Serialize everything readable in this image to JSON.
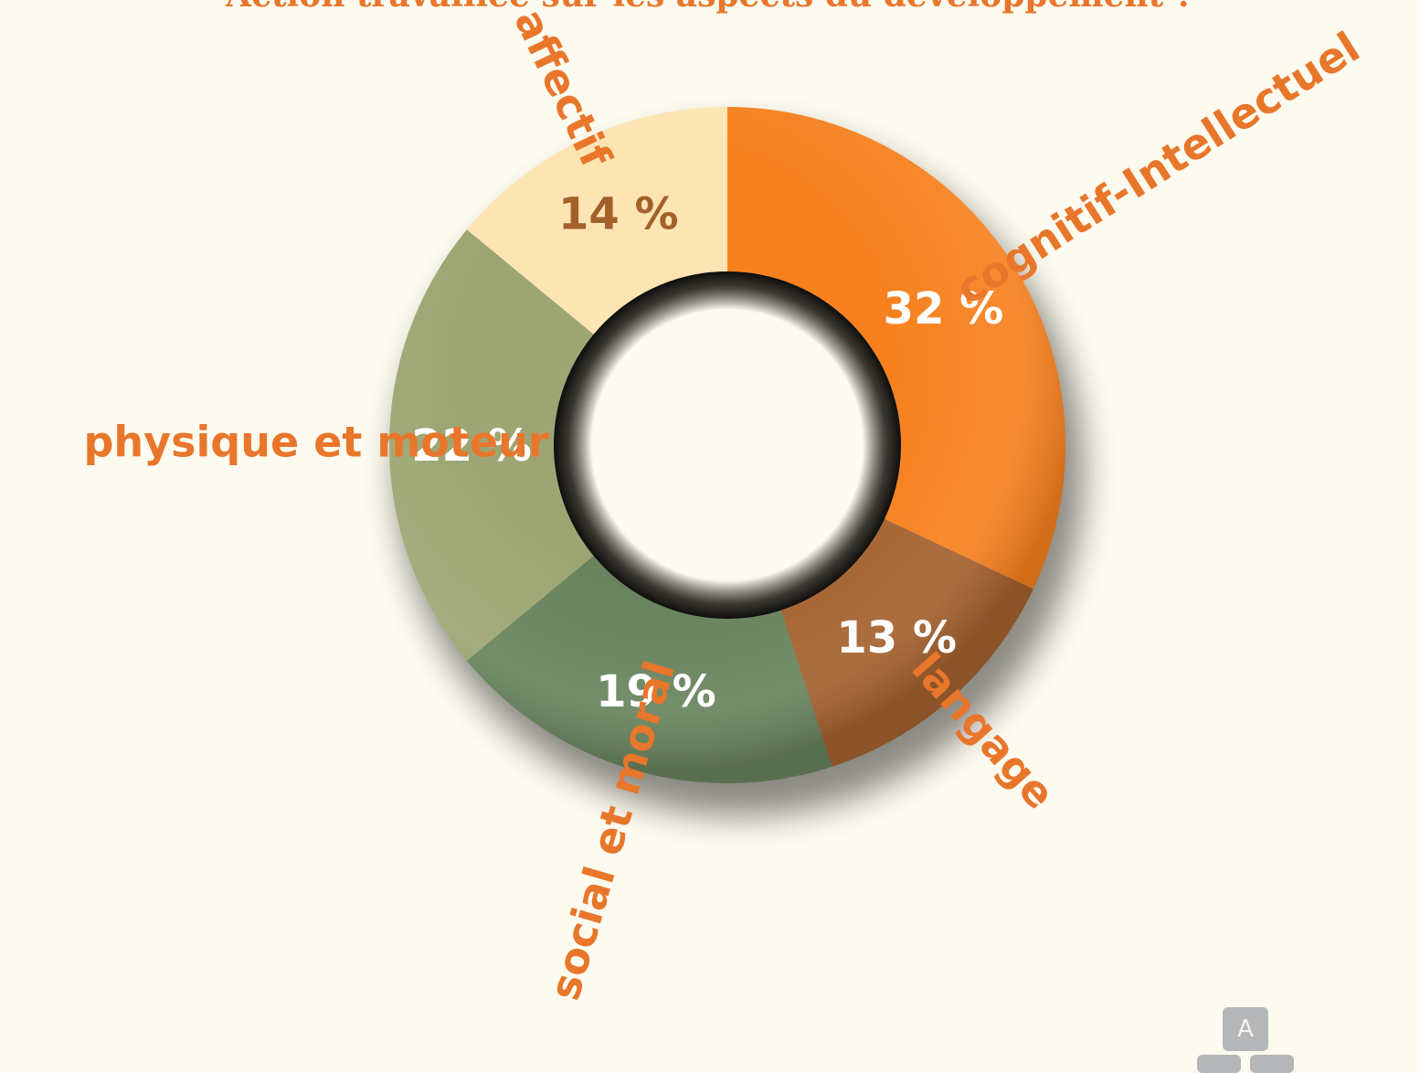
{
  "title": "Action travaillée sur les aspects du développement ?",
  "chart_data": {
    "type": "pie",
    "style": "donut",
    "slices": [
      {
        "category": "cognitif-Intellectuel",
        "value": 32,
        "label": "32 %",
        "color": "#f7811f",
        "label_color": "#ffffff",
        "category_color": "#e8762b"
      },
      {
        "category": "langage",
        "value": 13,
        "label": "13 %",
        "color": "#a4622f",
        "label_color": "#ffffff",
        "category_color": "#e8762b"
      },
      {
        "category": "social et moral",
        "value": 19,
        "label": "19 %",
        "color": "#68835d",
        "label_color": "#ffffff",
        "category_color": "#e8762b"
      },
      {
        "category": "physique et moteur",
        "value": 22,
        "label": "22 %",
        "color": "#9da673",
        "label_color": "#ffffff",
        "category_color": "#e8762b"
      },
      {
        "category": "affectif",
        "value": 14,
        "label": "14 %",
        "color": "#fde5b3",
        "label_color": "#a4602b",
        "category_color": "#e8762b"
      }
    ]
  },
  "widget": {
    "key_label": "A",
    "icon": "keyboard-icon"
  }
}
